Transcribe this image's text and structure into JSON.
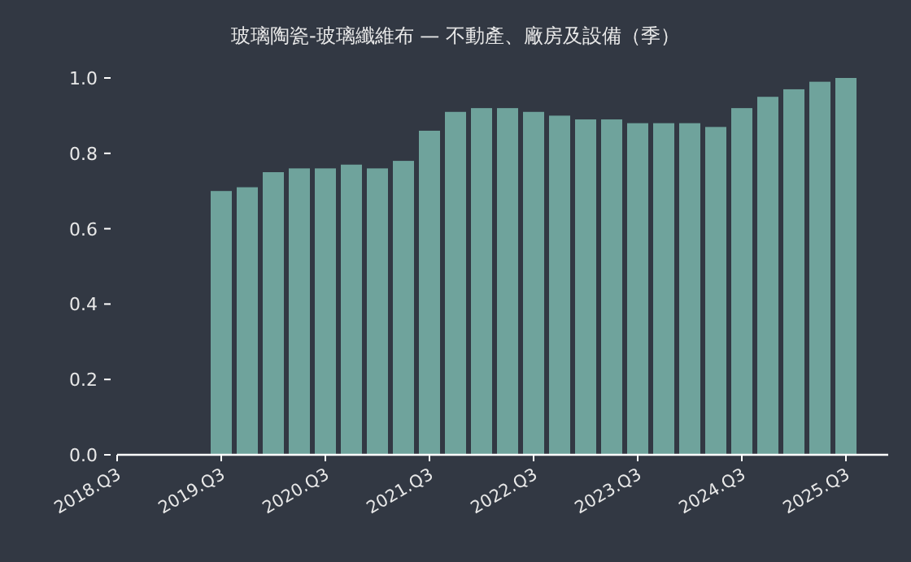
{
  "chart_data": {
    "type": "bar",
    "title": "玻璃陶瓷-玻璃纖維布 — 不動產、廠房及設備（季）",
    "categories": [
      "2018.Q3",
      null,
      null,
      null,
      "2019.Q3",
      null,
      null,
      null,
      "2020.Q3",
      null,
      null,
      null,
      "2021.Q3",
      null,
      null,
      null,
      "2022.Q3",
      null,
      null,
      null,
      "2023.Q3",
      null,
      null,
      null,
      "2024.Q3",
      null,
      null,
      null,
      "2025.Q3"
    ],
    "values": [
      null,
      null,
      null,
      null,
      0.7,
      0.71,
      0.75,
      0.76,
      0.76,
      0.77,
      0.76,
      0.78,
      0.86,
      0.91,
      0.92,
      0.92,
      0.91,
      0.9,
      0.89,
      0.89,
      0.88,
      0.88,
      0.88,
      0.87,
      0.92,
      0.95,
      0.97,
      0.99,
      1.0
    ],
    "color": "#6fa39c",
    "ylim": [
      0,
      1
    ],
    "yticks": [
      {
        "value": 0,
        "label": "0.0"
      },
      {
        "value": 0.2,
        "label": "0.2"
      },
      {
        "value": 0.4,
        "label": "0.4"
      },
      {
        "value": 0.6,
        "label": "0.6"
      },
      {
        "value": 0.8,
        "label": "0.8"
      },
      {
        "value": 1,
        "label": "1.0"
      }
    ],
    "grid": false
  }
}
